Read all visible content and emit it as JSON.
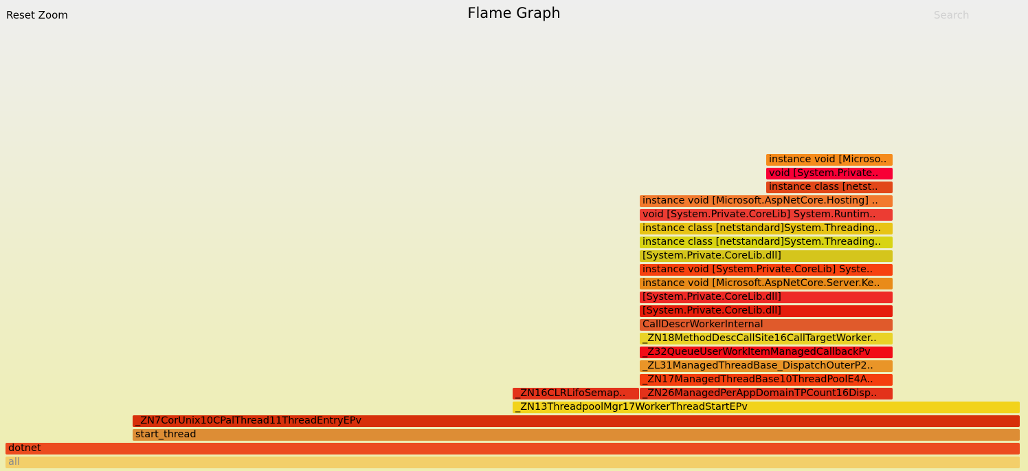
{
  "header": {
    "reset_zoom_label": "Reset Zoom",
    "title": "Flame Graph",
    "search_label": "Search"
  },
  "frames": [
    {
      "label": "all",
      "color": "#f3cf6a",
      "text_color": "#8a8a8a"
    },
    {
      "label": "dotnet",
      "color": "#ec4b1f"
    },
    {
      "label": "start_thread",
      "color": "#dd8d35"
    },
    {
      "label": "_ZN7CorUnix10CPalThread11ThreadEntryEPv",
      "color": "#d72f0a"
    },
    {
      "label": "_ZN13ThreadpoolMgr17WorkerThreadStartEPv",
      "color": "#f2d31b"
    },
    {
      "label": "_ZN16CLRLifoSemap..",
      "color": "#e3321a"
    },
    {
      "label": "_ZN26ManagedPerAppDomainTPCount16Disp..",
      "color": "#e3321a"
    },
    {
      "label": "_ZN17ManagedThreadBase10ThreadPoolE4A..",
      "color": "#f53e0e"
    },
    {
      "label": "_ZL31ManagedThreadBase_DispatchOuterP2..",
      "color": "#e99528"
    },
    {
      "label": "_Z32QueueUserWorkItemManagedCallbackPv",
      "color": "#f10c16"
    },
    {
      "label": "_ZN18MethodDescCallSite16CallTargetWorker..",
      "color": "#e9d327"
    },
    {
      "label": "CallDescrWorkerInternal",
      "color": "#e05a2b"
    },
    {
      "label": "[System.Private.CoreLib.dll]",
      "color": "#e51d0b"
    },
    {
      "label": "[System.Private.CoreLib.dll]",
      "color": "#ee2a26"
    },
    {
      "label": "instance void [Microsoft.AspNetCore.Server.Ke..",
      "color": "#e98b19"
    },
    {
      "label": "instance void [System.Private.CoreLib] Syste..",
      "color": "#f7410f"
    },
    {
      "label": "[System.Private.CoreLib.dll]",
      "color": "#d5c51c"
    },
    {
      "label": "instance class [netstandard]System.Threading..",
      "color": "#d8d413"
    },
    {
      "label": "instance class [netstandard]System.Threading..",
      "color": "#e8c415"
    },
    {
      "label": "void [System.Private.CoreLib] System.Runtim..",
      "color": "#ec3c33"
    },
    {
      "label": "instance void [Microsoft.AspNetCore.Hosting] ..",
      "color": "#f27a2e"
    },
    {
      "label": "instance class [netst..",
      "color": "#e24719"
    },
    {
      "label": "void [System.Private..",
      "color": "#f80036"
    },
    {
      "label": "instance void [Microso..",
      "color": "#f58b1c"
    }
  ]
}
